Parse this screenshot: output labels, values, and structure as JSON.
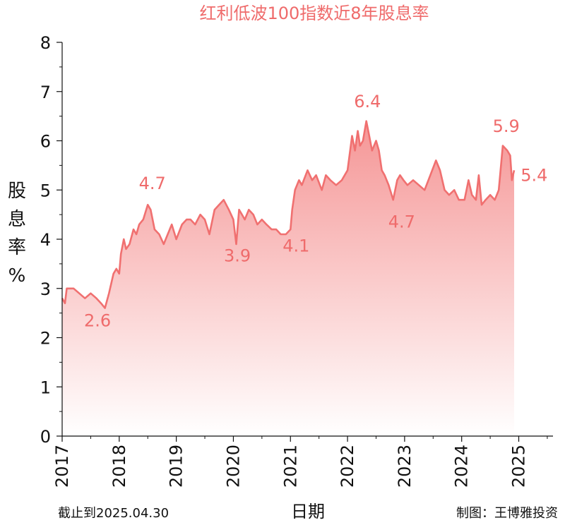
{
  "chart_data": {
    "type": "area",
    "title": "红利低波100指数近8年股息率",
    "xlabel": "日期",
    "ylabel": "股息率%",
    "ylabel_chars": [
      "股",
      "息",
      "率",
      "%"
    ],
    "xlim": [
      2017.0,
      2025.6
    ],
    "ylim": [
      0,
      8
    ],
    "x_ticks": [
      "2017",
      "2018",
      "2019",
      "2020",
      "2021",
      "2022",
      "2023",
      "2024",
      "2025"
    ],
    "y_ticks": [
      "0",
      "1",
      "2",
      "3",
      "4",
      "5",
      "6",
      "7",
      "8"
    ],
    "grid": false,
    "line_color": "#f07070",
    "fill_color": "#f48a8a",
    "series": [
      {
        "x": [
          2017.0,
          2017.05,
          2017.08,
          2017.12,
          2017.2,
          2017.3,
          2017.4,
          2017.5,
          2017.6,
          2017.68,
          2017.75,
          2017.82,
          2017.9,
          2017.95,
          2018.0,
          2018.03,
          2018.08,
          2018.12,
          2018.18,
          2018.25,
          2018.3,
          2018.35,
          2018.42,
          2018.5,
          2018.55,
          2018.62,
          2018.7,
          2018.78,
          2018.85,
          2018.92,
          2019.0,
          2019.1,
          2019.18,
          2019.25,
          2019.33,
          2019.42,
          2019.5,
          2019.58,
          2019.67,
          2019.75,
          2019.83,
          2019.92,
          2020.0,
          2020.05,
          2020.1,
          2020.15,
          2020.2,
          2020.27,
          2020.35,
          2020.42,
          2020.5,
          2020.58,
          2020.67,
          2020.75,
          2020.83,
          2020.92,
          2021.0,
          2021.03,
          2021.08,
          2021.15,
          2021.2,
          2021.3,
          2021.38,
          2021.45,
          2021.55,
          2021.62,
          2021.7,
          2021.8,
          2021.9,
          2022.0,
          2022.08,
          2022.13,
          2022.18,
          2022.22,
          2022.27,
          2022.33,
          2022.38,
          2022.43,
          2022.5,
          2022.55,
          2022.6,
          2022.65,
          2022.72,
          2022.8,
          2022.87,
          2022.92,
          2022.98,
          2023.05,
          2023.15,
          2023.25,
          2023.35,
          2023.45,
          2023.55,
          2023.62,
          2023.7,
          2023.78,
          2023.87,
          2023.95,
          2024.05,
          2024.12,
          2024.18,
          2024.25,
          2024.3,
          2024.35,
          2024.42,
          2024.5,
          2024.58,
          2024.65,
          2024.72,
          2024.8,
          2024.85,
          2024.88,
          2024.92
        ],
        "y": [
          2.8,
          2.7,
          3.0,
          3.0,
          3.0,
          2.9,
          2.8,
          2.9,
          2.8,
          2.7,
          2.6,
          2.9,
          3.3,
          3.4,
          3.3,
          3.7,
          4.0,
          3.8,
          3.9,
          4.2,
          4.1,
          4.3,
          4.4,
          4.7,
          4.6,
          4.2,
          4.1,
          3.9,
          4.1,
          4.3,
          4.0,
          4.3,
          4.4,
          4.4,
          4.3,
          4.5,
          4.4,
          4.1,
          4.6,
          4.7,
          4.8,
          4.6,
          4.4,
          3.9,
          4.6,
          4.5,
          4.4,
          4.6,
          4.5,
          4.3,
          4.4,
          4.3,
          4.2,
          4.2,
          4.1,
          4.1,
          4.2,
          4.6,
          5.0,
          5.2,
          5.1,
          5.4,
          5.2,
          5.3,
          5.0,
          5.3,
          5.2,
          5.1,
          5.2,
          5.4,
          6.1,
          5.8,
          6.2,
          5.9,
          6.0,
          6.4,
          6.1,
          5.8,
          6.0,
          5.8,
          5.4,
          5.3,
          5.1,
          4.8,
          5.2,
          5.3,
          5.2,
          5.1,
          5.2,
          5.1,
          5.0,
          5.3,
          5.6,
          5.4,
          5.0,
          4.9,
          5.0,
          4.8,
          4.8,
          5.2,
          4.9,
          4.8,
          5.3,
          4.7,
          4.8,
          4.9,
          4.8,
          5.0,
          5.9,
          5.8,
          5.7,
          5.2,
          5.4
        ]
      }
    ],
    "annotations": [
      {
        "x": 2017.62,
        "y": 2.23,
        "text": "2.6"
      },
      {
        "x": 2018.58,
        "y": 5.02,
        "text": "4.7"
      },
      {
        "x": 2020.07,
        "y": 3.55,
        "text": "3.9"
      },
      {
        "x": 2021.1,
        "y": 3.75,
        "text": "4.1"
      },
      {
        "x": 2022.35,
        "y": 6.68,
        "text": "6.4"
      },
      {
        "x": 2022.95,
        "y": 4.24,
        "text": "4.7"
      },
      {
        "x": 2024.78,
        "y": 6.18,
        "text": "5.9"
      },
      {
        "x": 2025.27,
        "y": 5.18,
        "text": "5.4"
      }
    ]
  },
  "footer": {
    "as_of": "截止到2025.04.30",
    "credit": "制图：王博雅投资"
  }
}
